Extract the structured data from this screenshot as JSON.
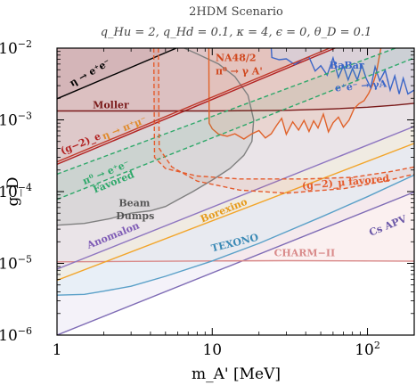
{
  "chart_data": {
    "type": "line",
    "title": "2HDM Scenario",
    "subtitle": "q_Hu = 2, q_Hd = 0.1, κ = 4, ϵ = 0, θ_D = 0.1",
    "xlabel": "m_A' [MeV]",
    "ylabel": "g_D",
    "xscale": "log",
    "yscale": "log",
    "xlim": [
      1,
      200
    ],
    "ylim": [
      1e-06,
      0.01
    ],
    "grid": false,
    "x_ticks": [
      {
        "value": 1,
        "base": "1",
        "exp": ""
      },
      {
        "value": 10,
        "base": "10",
        "exp": ""
      },
      {
        "value": 100,
        "base": "10",
        "exp": "2"
      }
    ],
    "y_ticks": [
      {
        "value": 1e-06,
        "base": "10",
        "exp": "−6"
      },
      {
        "value": 1e-05,
        "base": "10",
        "exp": "−5"
      },
      {
        "value": 0.0001,
        "base": "10",
        "exp": "−4"
      },
      {
        "value": 0.001,
        "base": "10",
        "exp": "−3"
      },
      {
        "value": 0.01,
        "base": "10",
        "exp": "−2"
      }
    ],
    "regions": [
      {
        "name": "Cs APV",
        "color": "#7e6bb5",
        "fill": "#e7e2f2",
        "boundary": [
          [
            1,
            1e-06
          ],
          [
            200,
            9.85e-05
          ]
        ]
      },
      {
        "name": "CHARM−II",
        "color": "#d98a8a",
        "fill": "#f6dede",
        "boundary": [
          [
            1,
            1.05e-05
          ],
          [
            10,
            1.08e-05
          ],
          [
            30,
            1.09e-05
          ],
          [
            100,
            1.08e-05
          ],
          [
            200,
            1.07e-05
          ]
        ]
      },
      {
        "name": "TEXONO",
        "color": "#5aa0c8",
        "fill": "#d9ebf3",
        "boundary": [
          [
            1,
            3.6e-06
          ],
          [
            1.5,
            3.7e-06
          ],
          [
            2,
            4.1e-06
          ],
          [
            3,
            4.8e-06
          ],
          [
            5,
            6.6e-06
          ],
          [
            10,
            1.08e-05
          ],
          [
            20,
            1.9e-05
          ],
          [
            50,
            4.4e-05
          ],
          [
            100,
            8.5e-05
          ],
          [
            200,
            0.00017
          ]
        ]
      },
      {
        "name": "Borexino",
        "color": "#f2a52a",
        "fill": "#fbedd0",
        "boundary": [
          [
            1,
            5.8e-06
          ],
          [
            200,
            0.00047
          ]
        ]
      },
      {
        "name": "Anomalon",
        "color": "#8e76c0",
        "fill": "#e3dcf0",
        "boundary": [
          [
            1,
            8.3e-06
          ],
          [
            200,
            0.00081
          ]
        ]
      },
      {
        "name": "Beam Dumps",
        "color": "#808080",
        "fill": "#c8c8c8",
        "boundary": [
          [
            1,
            3.4e-05
          ],
          [
            1.5,
            3.6e-05
          ],
          [
            2.2,
            4.2e-05
          ],
          [
            3,
            5e-05
          ],
          [
            4,
            5.4e-05
          ],
          [
            5,
            6.2e-05
          ],
          [
            6,
            7.7e-05
          ],
          [
            7.5,
            0.0001
          ],
          [
            10,
            0.000145
          ],
          [
            13,
            0.00021
          ],
          [
            16,
            0.00032
          ],
          [
            18,
            0.0005
          ],
          [
            18.5,
            0.001
          ],
          [
            17,
            0.0022
          ],
          [
            14,
            0.004
          ],
          [
            11,
            0.006
          ],
          [
            8,
            0.0083
          ],
          [
            6.6,
            0.01
          ]
        ]
      },
      {
        "name": "(g−2)_e",
        "color": "#b22222",
        "fill": "#e3b8b8",
        "boundary": [
          [
            1,
            0.00024
          ],
          [
            200,
            0.029
          ]
        ]
      },
      {
        "name": "Moller",
        "color": "#7a1a1a",
        "fill": "#d9b5b5",
        "boundary": [
          [
            1,
            0.00133
          ],
          [
            10,
            0.00133
          ],
          [
            30,
            0.00136
          ],
          [
            60,
            0.00142
          ],
          [
            100,
            0.0015
          ],
          [
            150,
            0.0016
          ],
          [
            200,
            0.0017
          ]
        ]
      },
      {
        "name": "η → e⁺e⁻",
        "color": "#000000",
        "fill": "#c9a9ac",
        "boundary": [
          [
            1,
            0.00197
          ],
          [
            6,
            0.0102
          ]
        ]
      },
      {
        "name": "NA48/2 π⁰ → γ A'",
        "color": "#e0622a",
        "fill": "#e8c4b6",
        "boundary": [
          [
            9.5,
            0.01
          ],
          [
            9.55,
            0.0009
          ],
          [
            10,
            0.00075
          ],
          [
            11,
            0.00063
          ],
          [
            12.5,
            0.00059
          ],
          [
            14,
            0.00064
          ],
          [
            16,
            0.00054
          ],
          [
            18,
            0.00064
          ],
          [
            20,
            0.00071
          ],
          [
            22,
            0.00056
          ],
          [
            24,
            0.00064
          ],
          [
            26,
            0.00084
          ],
          [
            28,
            0.00105
          ],
          [
            30,
            0.00063
          ],
          [
            33,
            0.00094
          ],
          [
            36,
            0.00072
          ],
          [
            39,
            0.00098
          ],
          [
            42,
            0.00069
          ],
          [
            45,
            0.00097
          ],
          [
            48,
            0.00077
          ],
          [
            52,
            0.0012
          ],
          [
            56,
            0.00068
          ],
          [
            60,
            0.00091
          ],
          [
            65,
            0.00109
          ],
          [
            70,
            0.00079
          ],
          [
            76,
            0.00099
          ],
          [
            82,
            0.00143
          ],
          [
            88,
            0.00168
          ],
          [
            95,
            0.00185
          ],
          [
            102,
            0.00235
          ],
          [
            108,
            0.0031
          ],
          [
            114,
            0.0045
          ],
          [
            119,
            0.0075
          ],
          [
            122,
            0.01
          ]
        ]
      },
      {
        "name": "BaBar e⁺e⁻ → γ A'",
        "color": "#3a66c8",
        "fill": "#cfd9ef",
        "boundary": [
          [
            24,
            0.01
          ],
          [
            24.2,
            0.0074
          ],
          [
            27,
            0.0069
          ],
          [
            30,
            0.0071
          ],
          [
            34,
            0.0059
          ],
          [
            38,
            0.0069
          ],
          [
            42,
            0.0075
          ],
          [
            46,
            0.0048
          ],
          [
            50,
            0.0057
          ],
          [
            55,
            0.0042
          ],
          [
            60,
            0.0073
          ],
          [
            65,
            0.0039
          ],
          [
            70,
            0.0057
          ],
          [
            75,
            0.0036
          ],
          [
            80,
            0.0052
          ],
          [
            86,
            0.0036
          ],
          [
            92,
            0.0058
          ],
          [
            98,
            0.0038
          ],
          [
            105,
            0.0028
          ],
          [
            112,
            0.0055
          ],
          [
            120,
            0.0035
          ],
          [
            130,
            0.0049
          ],
          [
            140,
            0.0026
          ],
          [
            150,
            0.0041
          ],
          [
            160,
            0.0023
          ],
          [
            170,
            0.0038
          ],
          [
            182,
            0.0023
          ],
          [
            200,
            0.0026
          ]
        ]
      },
      {
        "name": "π⁰ → e⁺e⁻ favored",
        "color": "#2ea86a",
        "style": "dashed",
        "upper": [
          [
            1,
            0.000175
          ],
          [
            200,
            0.0125
          ]
        ],
        "lower": [
          [
            1,
            7.8e-05
          ],
          [
            200,
            0.0073
          ]
        ]
      },
      {
        "name": "(g−2)_μ favored",
        "color": "#e55a2b",
        "style": "dashed",
        "upper": [
          [
            4.2,
            0.01
          ],
          [
            4.25,
            0.0003
          ],
          [
            5,
            0.00021
          ],
          [
            8,
            0.000165
          ],
          [
            15,
            0.00015
          ],
          [
            40,
            0.00015
          ],
          [
            80,
            0.000158
          ],
          [
            140,
            0.00019
          ],
          [
            200,
            0.00022
          ]
        ],
        "lower": [
          [
            4.5,
            0.01
          ],
          [
            4.55,
            0.0004
          ],
          [
            5.5,
            0.00022
          ],
          [
            8,
            0.00014
          ],
          [
            15,
            0.000105
          ],
          [
            30,
            9.5e-05
          ],
          [
            70,
            0.00011
          ],
          [
            130,
            0.00014
          ],
          [
            200,
            0.000175
          ]
        ]
      },
      {
        "name": "η → π⁺μ⁻",
        "color": "#c0392b",
        "style": "solid",
        "line": [
          [
            1,
            0.00026
          ],
          [
            200,
            0.031
          ]
        ]
      }
    ],
    "annotations": [
      {
        "id": "eta-ee",
        "text": "η → e⁺e⁻",
        "color": "#000000",
        "x": 1.25,
        "y": 0.0029,
        "rotation": -30
      },
      {
        "id": "moller",
        "text": "Moller",
        "color": "#7a1a1a",
        "x": 1.7,
        "y": 0.00145,
        "rotation": 0
      },
      {
        "id": "na48",
        "text": "NA48/2",
        "color": "#d0481f",
        "x": 10.5,
        "y": 0.0066,
        "rotation": 0
      },
      {
        "id": "na48-proc",
        "text": "π⁰ → γ A'",
        "color": "#d0481f",
        "x": 10.5,
        "y": 0.0043,
        "rotation": 0
      },
      {
        "id": "babar",
        "text": "BaBar",
        "color": "#3a66c8",
        "x": 57,
        "y": 0.0052,
        "rotation": 0
      },
      {
        "id": "babar-proc",
        "text": "e⁺e⁻ → γA'",
        "color": "#3a66c8",
        "x": 62,
        "y": 0.0025,
        "rotation": -5
      },
      {
        "id": "g2e",
        "text": "(g−2)_e",
        "color": "#b22222",
        "x": 1.08,
        "y": 0.00033,
        "rotation": -22
      },
      {
        "id": "eta-pimu",
        "text": "η → π⁺μ⁻",
        "color": "#e08a2b",
        "x": 2.0,
        "y": 0.00053,
        "rotation": -22
      },
      {
        "id": "pi-ee",
        "text": "π⁰ → e⁺e⁻",
        "color": "#2ea86a",
        "x": 1.5,
        "y": 0.000125,
        "rotation": -22
      },
      {
        "id": "favored-green",
        "text": "Favored",
        "color": "#2ea86a",
        "x": 1.75,
        "y": 9.5e-05,
        "rotation": -22
      },
      {
        "id": "beam",
        "text": "Beam",
        "color": "#555555",
        "x": 2.5,
        "y": 6.2e-05,
        "rotation": 0
      },
      {
        "id": "dumps",
        "text": "Dumps",
        "color": "#555555",
        "x": 2.4,
        "y": 4.1e-05,
        "rotation": 0
      },
      {
        "id": "g2mu",
        "text": "(g−2)_μ favored",
        "color": "#e55a2b",
        "x": 38,
        "y": 0.000108,
        "rotation": -5
      },
      {
        "id": "borexino",
        "text": "Borexino",
        "color": "#e69a1a",
        "x": 8.6,
        "y": 3.7e-05,
        "rotation": -22
      },
      {
        "id": "anomalon",
        "text": "Anomalon",
        "color": "#7e5bb5",
        "x": 1.6,
        "y": 1.6e-05,
        "rotation": -22
      },
      {
        "id": "texono",
        "text": "TEXONO",
        "color": "#3a89b5",
        "x": 10,
        "y": 1.45e-05,
        "rotation": -14
      },
      {
        "id": "csapv",
        "text": "Cs APV",
        "color": "#6c59a8",
        "x": 105,
        "y": 2.4e-05,
        "rotation": -22
      },
      {
        "id": "charm",
        "text": "CHARM−II",
        "color": "#d98a8a",
        "x": 25,
        "y": 1.25e-05,
        "rotation": 0
      }
    ]
  }
}
